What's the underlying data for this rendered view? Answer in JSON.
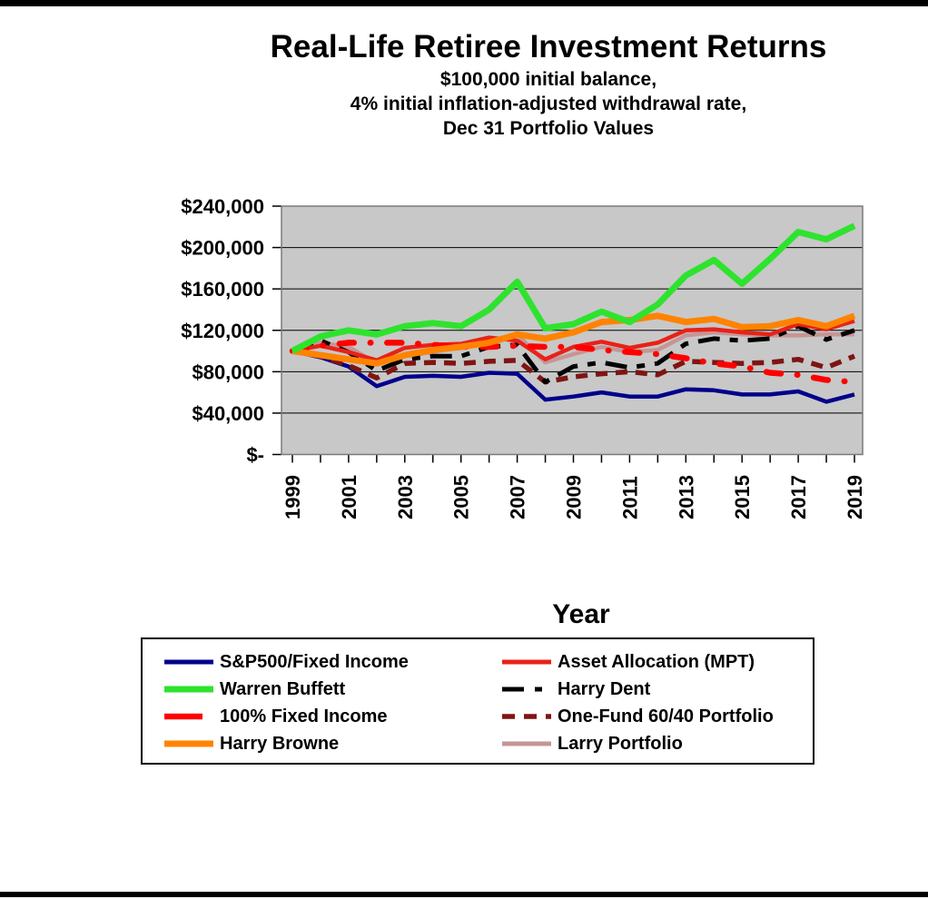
{
  "header": {
    "title": "Real-Life Retiree Investment Returns",
    "subtitle1": "$100,000 initial balance,",
    "subtitle2": "4% initial inflation-adjusted withdrawal rate,",
    "subtitle3": "Dec 31 Portfolio Values"
  },
  "chart_style": {
    "plot_bg_color": "#C8C8C8",
    "plot_border_color": "#7A7A7A",
    "gridline_color": "#000000",
    "text_color": "#000000"
  },
  "chart_data": {
    "type": "line",
    "title": "Real-Life Retiree Investment Returns",
    "xlabel": "Year",
    "ylabel": "",
    "x": [
      1999,
      2000,
      2001,
      2002,
      2003,
      2004,
      2005,
      2006,
      2007,
      2008,
      2009,
      2010,
      2011,
      2012,
      2013,
      2014,
      2015,
      2016,
      2017,
      2018,
      2019
    ],
    "x_tick_labels": [
      "1999",
      "2001",
      "2003",
      "2005",
      "2007",
      "2009",
      "2011",
      "2013",
      "2015",
      "2017",
      "2019"
    ],
    "y_tick_labels": [
      "$240,000",
      "$200,000",
      "$160,000",
      "$120,000",
      "$80,000",
      "$40,000",
      "$-"
    ],
    "ylim": [
      0,
      240000
    ],
    "gridline_step": 40000,
    "legend_position": "bottom",
    "grid": true,
    "series": [
      {
        "name": "S&P500/Fixed Income",
        "color": "#00008B",
        "line_width": 4.5,
        "dash": "",
        "linecap": "butt",
        "legend_dash": "",
        "values": [
          100000,
          94000,
          85000,
          66000,
          75000,
          76000,
          75000,
          79000,
          78000,
          53000,
          56000,
          60000,
          56000,
          56000,
          63000,
          62000,
          58000,
          58000,
          61000,
          51000,
          58000
        ]
      },
      {
        "name": "Asset Allocation (MPT)",
        "color": "#E82218",
        "line_width": 4.5,
        "dash": "",
        "linecap": "butt",
        "legend_dash": "",
        "values": [
          100000,
          105000,
          99000,
          91000,
          103000,
          106000,
          107000,
          113000,
          110000,
          92000,
          104000,
          109000,
          103000,
          108000,
          120000,
          121000,
          118000,
          116000,
          126000,
          121000,
          129000
        ]
      },
      {
        "name": "Warren Buffett",
        "color": "#2EE32E",
        "line_width": 7,
        "dash": "",
        "linecap": "butt",
        "legend_dash": "",
        "values": [
          100000,
          114000,
          120000,
          116000,
          124000,
          127000,
          124000,
          140000,
          167000,
          122000,
          126000,
          138000,
          128000,
          145000,
          173000,
          188000,
          165000,
          189000,
          215000,
          208000,
          221000
        ]
      },
      {
        "name": "Harry Dent",
        "color": "#000000",
        "line_width": 5,
        "dash": "24 11 9 11",
        "linecap": "butt",
        "legend_dash": "24 12 8 200",
        "values": [
          100000,
          110000,
          99000,
          81000,
          92000,
          95000,
          95000,
          104000,
          106000,
          70000,
          85000,
          89000,
          84000,
          88000,
          107000,
          112000,
          110000,
          112000,
          124000,
          111000,
          120000
        ]
      },
      {
        "name": "100% Fixed Income",
        "color": "#FF0000",
        "line_width": 6.5,
        "dash": "16 18 0.5 18",
        "linecap": "round",
        "legend_dash": "42 200",
        "values": [
          100000,
          105000,
          108000,
          108000,
          108000,
          106000,
          104000,
          104000,
          105000,
          104000,
          104000,
          101000,
          99000,
          97000,
          93000,
          88000,
          85000,
          79000,
          77000,
          72000,
          70000
        ]
      },
      {
        "name": "One-Fund 60/40 Portfolio",
        "color": "#7F1512",
        "line_width": 5.5,
        "dash": "13 9",
        "linecap": "butt",
        "legend_dash": "14 10",
        "values": [
          100000,
          95000,
          86000,
          74000,
          88000,
          89000,
          88000,
          90000,
          91000,
          70000,
          75000,
          78000,
          80000,
          77000,
          90000,
          89000,
          88000,
          89000,
          92000,
          84000,
          95000
        ]
      },
      {
        "name": "Harry Browne",
        "color": "#FF8300",
        "line_width": 7,
        "dash": "",
        "linecap": "butt",
        "legend_dash": "",
        "values": [
          100000,
          96000,
          92000,
          88000,
          96000,
          101000,
          104000,
          108000,
          116000,
          112000,
          118000,
          128000,
          130000,
          134000,
          128000,
          131000,
          123000,
          124000,
          130000,
          124000,
          134000
        ]
      },
      {
        "name": "Larry Portfolio",
        "color": "#C69595",
        "line_width": 4.5,
        "dash": "",
        "linecap": "butt",
        "legend_dash": "",
        "values": [
          100000,
          108000,
          104000,
          88000,
          95000,
          99000,
          104000,
          110000,
          116000,
          89000,
          97000,
          104000,
          99000,
          101000,
          115000,
          118000,
          116000,
          115000,
          115000,
          116000,
          116000
        ]
      }
    ],
    "draw_order": [
      0,
      7,
      5,
      3,
      1,
      4,
      6,
      2
    ]
  }
}
